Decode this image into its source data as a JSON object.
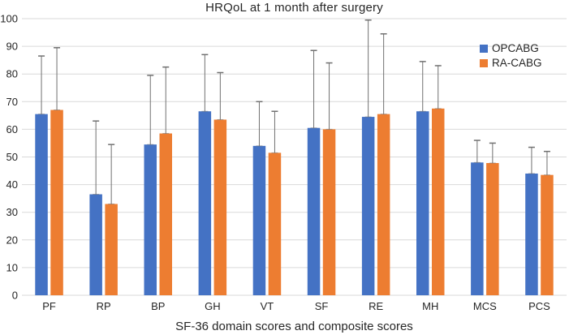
{
  "chart_data": {
    "type": "bar",
    "title": "HRQoL at 1 month after surgery",
    "xlabel": "SF-36 domain scores and composite scores",
    "ylabel": "",
    "ylim": [
      0,
      100
    ],
    "ytick_step": 10,
    "grid": true,
    "legend_position": "top-right-inside",
    "categories": [
      "PF",
      "RP",
      "BP",
      "GH",
      "VT",
      "SF",
      "RE",
      "MH",
      "MCS",
      "PCS"
    ],
    "series": [
      {
        "name": "OPCABG",
        "color": "#4472C4",
        "values": [
          65.5,
          36.5,
          54.5,
          66.5,
          54,
          60.5,
          64.5,
          66.5,
          48,
          44
        ],
        "error_up": [
          21,
          26.5,
          25,
          20.5,
          16,
          28,
          35,
          18,
          8,
          9.5
        ]
      },
      {
        "name": "RA-CABG",
        "color": "#ED7D31",
        "values": [
          67,
          33,
          58.5,
          63.5,
          51.5,
          60,
          65.5,
          67.5,
          47.8,
          43.5
        ],
        "error_up": [
          22.5,
          21.5,
          24,
          17,
          15,
          24,
          29,
          15.5,
          7.2,
          8.5
        ]
      }
    ],
    "colors": {
      "gridline": "#D9D9D9",
      "axis_line": "#D9D9D9",
      "error_bar": "#707070",
      "tick_text": "#262626"
    }
  }
}
